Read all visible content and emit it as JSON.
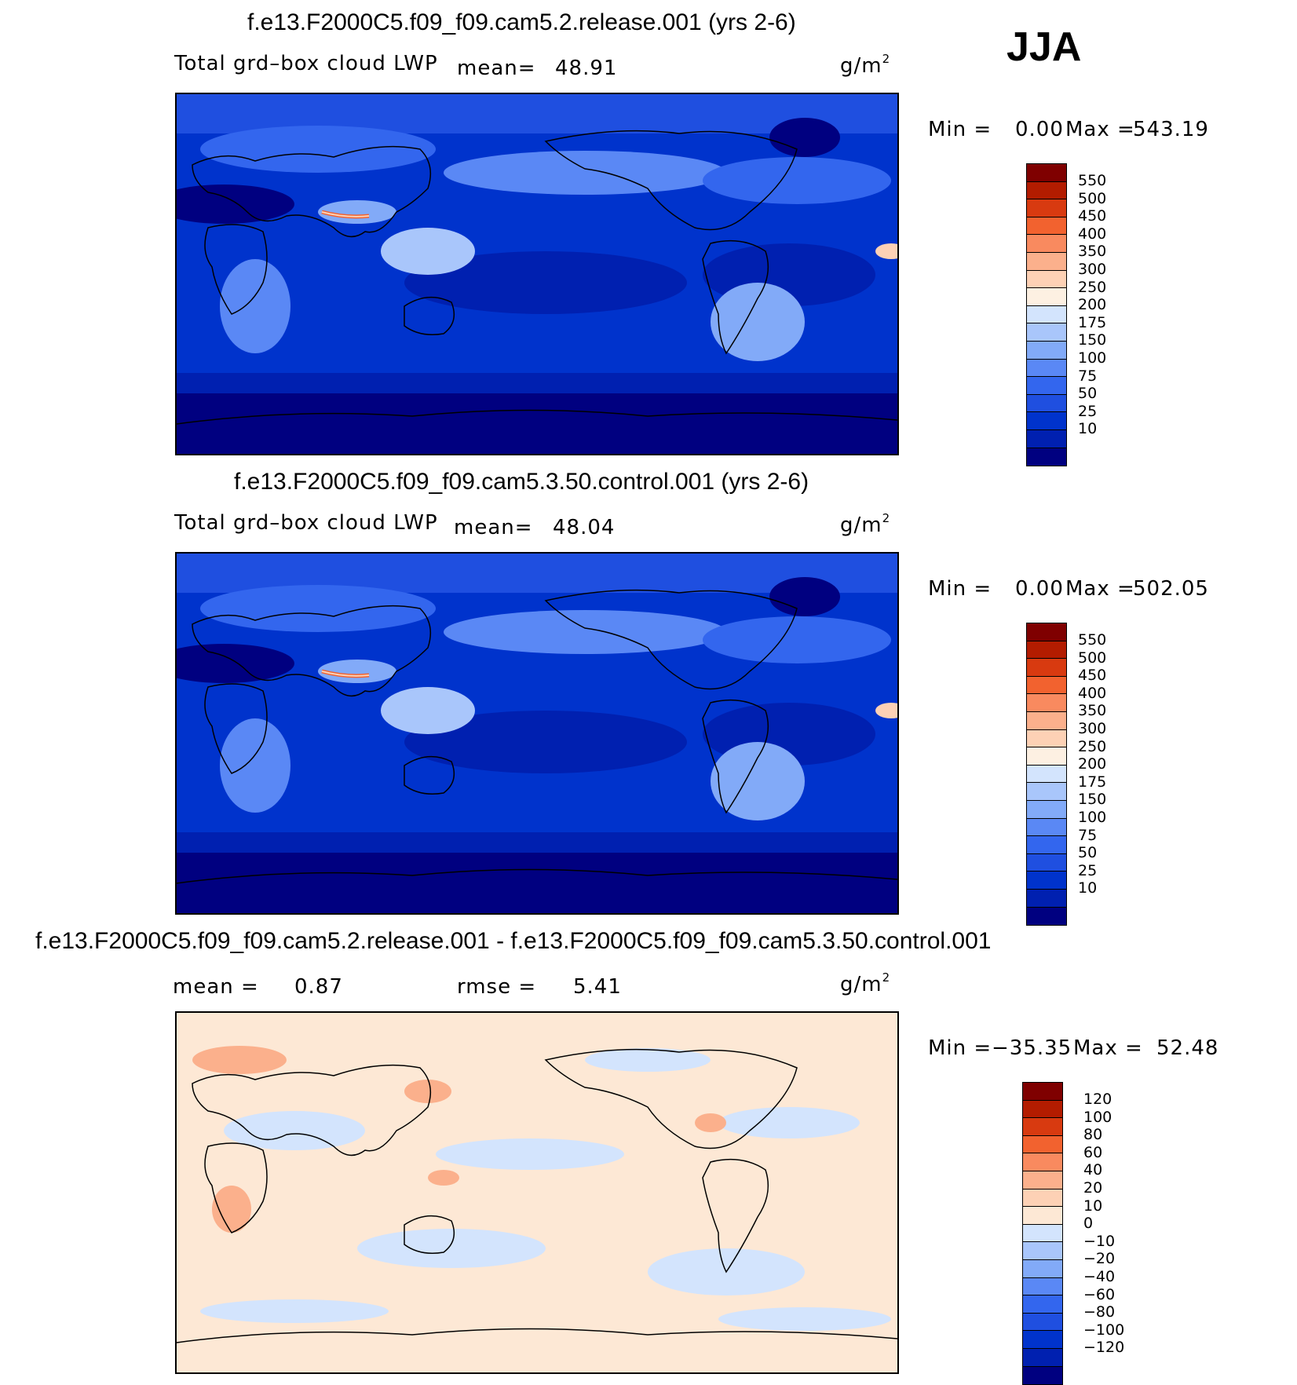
{
  "season": "JJA",
  "colors": {
    "abs_scale": [
      "#000080",
      "#0020b0",
      "#0033cc",
      "#1f4fe0",
      "#3366ee",
      "#5a88f5",
      "#82aaf8",
      "#a9c6fb",
      "#d3e4fd",
      "#fdf0e2",
      "#fdd1b5",
      "#fbb08c",
      "#f98a5f",
      "#f2622f",
      "#d83a10",
      "#b31c00",
      "#7f0000"
    ],
    "diff_scale": [
      "#000080",
      "#0020b0",
      "#0033cc",
      "#1f4fe0",
      "#3366ee",
      "#5a88f5",
      "#82aaf8",
      "#a9c6fb",
      "#d3e4fd",
      "#fde8d5",
      "#fdd1b5",
      "#fbb08c",
      "#f98a5f",
      "#f2622f",
      "#d83a10",
      "#b31c00",
      "#7f0000"
    ],
    "land_outline": "#000000"
  },
  "panels": [
    {
      "title": "f.e13.F2000C5.f09_f09.cam5.2.release.001 (yrs 2-6)",
      "variable": "Total grd–box cloud LWP",
      "mean_label": "mean=",
      "mean_value": "48.91",
      "units": "g/m",
      "units_exp": "2",
      "min_label": "Min =",
      "min_value": "0.00",
      "max_label": "Max =",
      "max_value": "543.19",
      "colorbar_ticks": [
        "550",
        "500",
        "450",
        "400",
        "350",
        "300",
        "250",
        "200",
        "175",
        "150",
        "100",
        "75",
        "50",
        "25",
        "10"
      ]
    },
    {
      "title": "f.e13.F2000C5.f09_f09.cam5.3.50.control.001 (yrs 2-6)",
      "variable": "Total grd–box cloud LWP",
      "mean_label": "mean=",
      "mean_value": "48.04",
      "units": "g/m",
      "units_exp": "2",
      "min_label": "Min =",
      "min_value": "0.00",
      "max_label": "Max =",
      "max_value": "502.05",
      "colorbar_ticks": [
        "550",
        "500",
        "450",
        "400",
        "350",
        "300",
        "250",
        "200",
        "175",
        "150",
        "100",
        "75",
        "50",
        "25",
        "10"
      ]
    },
    {
      "title": "f.e13.F2000C5.f09_f09.cam5.2.release.001 - f.e13.F2000C5.f09_f09.cam5.3.50.control.001",
      "mean_label": "mean =",
      "mean_value": "0.87",
      "rmse_label": "rmse =",
      "rmse_value": "5.41",
      "units": "g/m",
      "units_exp": "2",
      "min_label": "Min =",
      "min_value": "−35.35",
      "max_label": "Max =",
      "max_value": "52.48",
      "colorbar_ticks": [
        "120",
        "100",
        "80",
        "60",
        "40",
        "20",
        "10",
        "0",
        "−10",
        "−20",
        "−40",
        "−60",
        "−80",
        "−100",
        "−120"
      ]
    }
  ]
}
